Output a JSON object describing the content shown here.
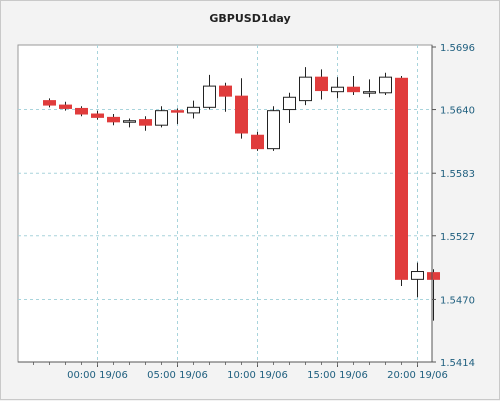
{
  "chart_data": {
    "type": "candlestick",
    "title": "GBPUSD1day",
    "ylim": [
      1.5414,
      1.5696
    ],
    "y_ticks": [
      "1.5696",
      "1.5640",
      "1.5583",
      "1.5527",
      "1.5470",
      "1.5414"
    ],
    "x_ticks": [
      {
        "label": "00:00 19/06",
        "hour": 0
      },
      {
        "label": "05:00 19/06",
        "hour": 5
      },
      {
        "label": "10:00 19/06",
        "hour": 10
      },
      {
        "label": "15:00 19/06",
        "hour": 15
      },
      {
        "label": "20:00 19/06",
        "hour": 20
      }
    ],
    "grid": true,
    "up_color": "#ffffff",
    "down_color": "#e03c3c",
    "candles": [
      {
        "hour": -3,
        "open": 1.5648,
        "high": 1.565,
        "low": 1.5642,
        "close": 1.5644
      },
      {
        "hour": -2,
        "open": 1.5644,
        "high": 1.5647,
        "low": 1.5639,
        "close": 1.5641
      },
      {
        "hour": -1,
        "open": 1.5641,
        "high": 1.5643,
        "low": 1.5634,
        "close": 1.5636
      },
      {
        "hour": 0,
        "open": 1.5636,
        "high": 1.5639,
        "low": 1.5631,
        "close": 1.5633
      },
      {
        "hour": 1,
        "open": 1.5633,
        "high": 1.5636,
        "low": 1.5626,
        "close": 1.5629
      },
      {
        "hour": 2,
        "open": 1.563,
        "high": 1.5632,
        "low": 1.5624,
        "close": 1.563
      },
      {
        "hour": 3,
        "open": 1.5631,
        "high": 1.5634,
        "low": 1.5621,
        "close": 1.5626
      },
      {
        "hour": 4,
        "open": 1.5626,
        "high": 1.5643,
        "low": 1.5624,
        "close": 1.5639
      },
      {
        "hour": 5,
        "open": 1.5639,
        "high": 1.5641,
        "low": 1.5627,
        "close": 1.5638
      },
      {
        "hour": 6,
        "open": 1.5637,
        "high": 1.5648,
        "low": 1.5632,
        "close": 1.5642
      },
      {
        "hour": 7,
        "open": 1.5642,
        "high": 1.5671,
        "low": 1.564,
        "close": 1.5661
      },
      {
        "hour": 8,
        "open": 1.5661,
        "high": 1.5664,
        "low": 1.5638,
        "close": 1.5652
      },
      {
        "hour": 9,
        "open": 1.5652,
        "high": 1.5668,
        "low": 1.5614,
        "close": 1.5619
      },
      {
        "hour": 10,
        "open": 1.5617,
        "high": 1.562,
        "low": 1.5603,
        "close": 1.5605
      },
      {
        "hour": 11,
        "open": 1.5605,
        "high": 1.5643,
        "low": 1.5603,
        "close": 1.5639
      },
      {
        "hour": 12,
        "open": 1.564,
        "high": 1.5655,
        "low": 1.5628,
        "close": 1.5651
      },
      {
        "hour": 13,
        "open": 1.5648,
        "high": 1.5678,
        "low": 1.5644,
        "close": 1.5669
      },
      {
        "hour": 14,
        "open": 1.5669,
        "high": 1.5676,
        "low": 1.5649,
        "close": 1.5657
      },
      {
        "hour": 15,
        "open": 1.5656,
        "high": 1.5669,
        "low": 1.565,
        "close": 1.566
      },
      {
        "hour": 16,
        "open": 1.566,
        "high": 1.567,
        "low": 1.5653,
        "close": 1.5656
      },
      {
        "hour": 17,
        "open": 1.5656,
        "high": 1.5667,
        "low": 1.5651,
        "close": 1.5656
      },
      {
        "hour": 18,
        "open": 1.5655,
        "high": 1.5673,
        "low": 1.5653,
        "close": 1.5669
      },
      {
        "hour": 19,
        "open": 1.5668,
        "high": 1.567,
        "low": 1.5482,
        "close": 1.5488
      },
      {
        "hour": 20,
        "open": 1.5488,
        "high": 1.5503,
        "low": 1.5472,
        "close": 1.5495
      },
      {
        "hour": 21,
        "open": 1.5494,
        "high": 1.5497,
        "low": 1.5451,
        "close": 1.5488
      }
    ]
  }
}
